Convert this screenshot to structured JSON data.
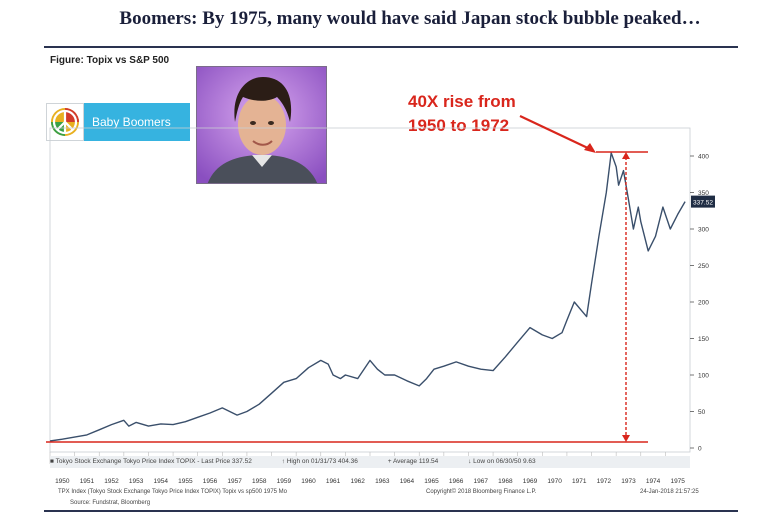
{
  "header": {
    "title": "Boomers: By 1975, many would have said Japan stock bubble peaked…",
    "figure_label": "Figure: Topix vs S&P 500"
  },
  "badge": {
    "label": "Baby Boomers",
    "icon": "peace-sign-icon"
  },
  "annotation": {
    "line1": "40X rise from",
    "line2": "1950 to 1972",
    "color": "#d9261c"
  },
  "legend": {
    "series": "Tokyo Stock Exchange Tokyo Price Index TOPIX - Last Price 337.52",
    "high": "High on 01/31/73 404.36",
    "average": "Average 119.54",
    "low": "Low on 06/30/50 9.63"
  },
  "footer": {
    "left": "TPX Index (Tokyo Stock Exchange Tokyo Price Index TOPIX) Topix vs sp500 1975  Mo",
    "mid": "Copyright© 2018 Bloomberg Finance L.P.",
    "right": "24-Jan-2018 21:57:25",
    "source": "Source: Fundstrat, Bloomberg"
  },
  "chart_data": {
    "type": "line",
    "title": "",
    "xlabel": "",
    "ylabel": "",
    "xlim": [
      1950,
      1976
    ],
    "ylim": [
      0,
      420
    ],
    "x_ticks": [
      "1950",
      "1951",
      "1952",
      "1953",
      "1954",
      "1955",
      "1956",
      "1957",
      "1958",
      "1959",
      "1960",
      "1961",
      "1962",
      "1963",
      "1964",
      "1965",
      "1966",
      "1967",
      "1968",
      "1969",
      "1970",
      "1971",
      "1972",
      "1973",
      "1974",
      "1975"
    ],
    "y_ticks": [
      0,
      50,
      100,
      150,
      200,
      250,
      300,
      350,
      400
    ],
    "last_value_label": "337.52",
    "series": [
      {
        "name": "Tokyo Stock Exchange Tokyo Price Index TOPIX",
        "color": "#3a4f6b",
        "x": [
          1950.0,
          1950.5,
          1951.0,
          1951.5,
          1952.0,
          1952.5,
          1953.0,
          1953.2,
          1953.5,
          1954.0,
          1954.5,
          1955.0,
          1955.5,
          1956.0,
          1956.5,
          1957.0,
          1957.3,
          1957.6,
          1958.0,
          1958.5,
          1959.0,
          1959.5,
          1960.0,
          1960.5,
          1961.0,
          1961.3,
          1961.5,
          1961.8,
          1962.0,
          1962.5,
          1963.0,
          1963.3,
          1963.6,
          1964.0,
          1964.5,
          1965.0,
          1965.3,
          1965.6,
          1966.0,
          1966.5,
          1967.0,
          1967.5,
          1968.0,
          1968.5,
          1969.0,
          1969.5,
          1970.0,
          1970.4,
          1970.8,
          1971.0,
          1971.3,
          1971.6,
          1971.8,
          1972.0,
          1972.3,
          1972.6,
          1972.8,
          1973.0,
          1973.1,
          1973.3,
          1973.5,
          1973.7,
          1973.9,
          1974.0,
          1974.3,
          1974.6,
          1974.9,
          1975.2,
          1975.5,
          1975.8
        ],
        "values": [
          9.63,
          12,
          15,
          18,
          25,
          32,
          38,
          30,
          35,
          30,
          33,
          32,
          36,
          42,
          48,
          55,
          50,
          45,
          50,
          60,
          75,
          90,
          95,
          110,
          120,
          115,
          100,
          95,
          100,
          95,
          120,
          108,
          100,
          100,
          92,
          85,
          95,
          108,
          112,
          118,
          112,
          108,
          106,
          125,
          145,
          165,
          155,
          150,
          158,
          175,
          200,
          188,
          180,
          225,
          290,
          350,
          404.36,
          385,
          360,
          380,
          340,
          300,
          330,
          310,
          270,
          290,
          330,
          300,
          320,
          337.52
        ]
      }
    ],
    "annotations": {
      "peak_value": 404.36,
      "peak_x": 1972.8,
      "base_value": 9.63
    }
  }
}
